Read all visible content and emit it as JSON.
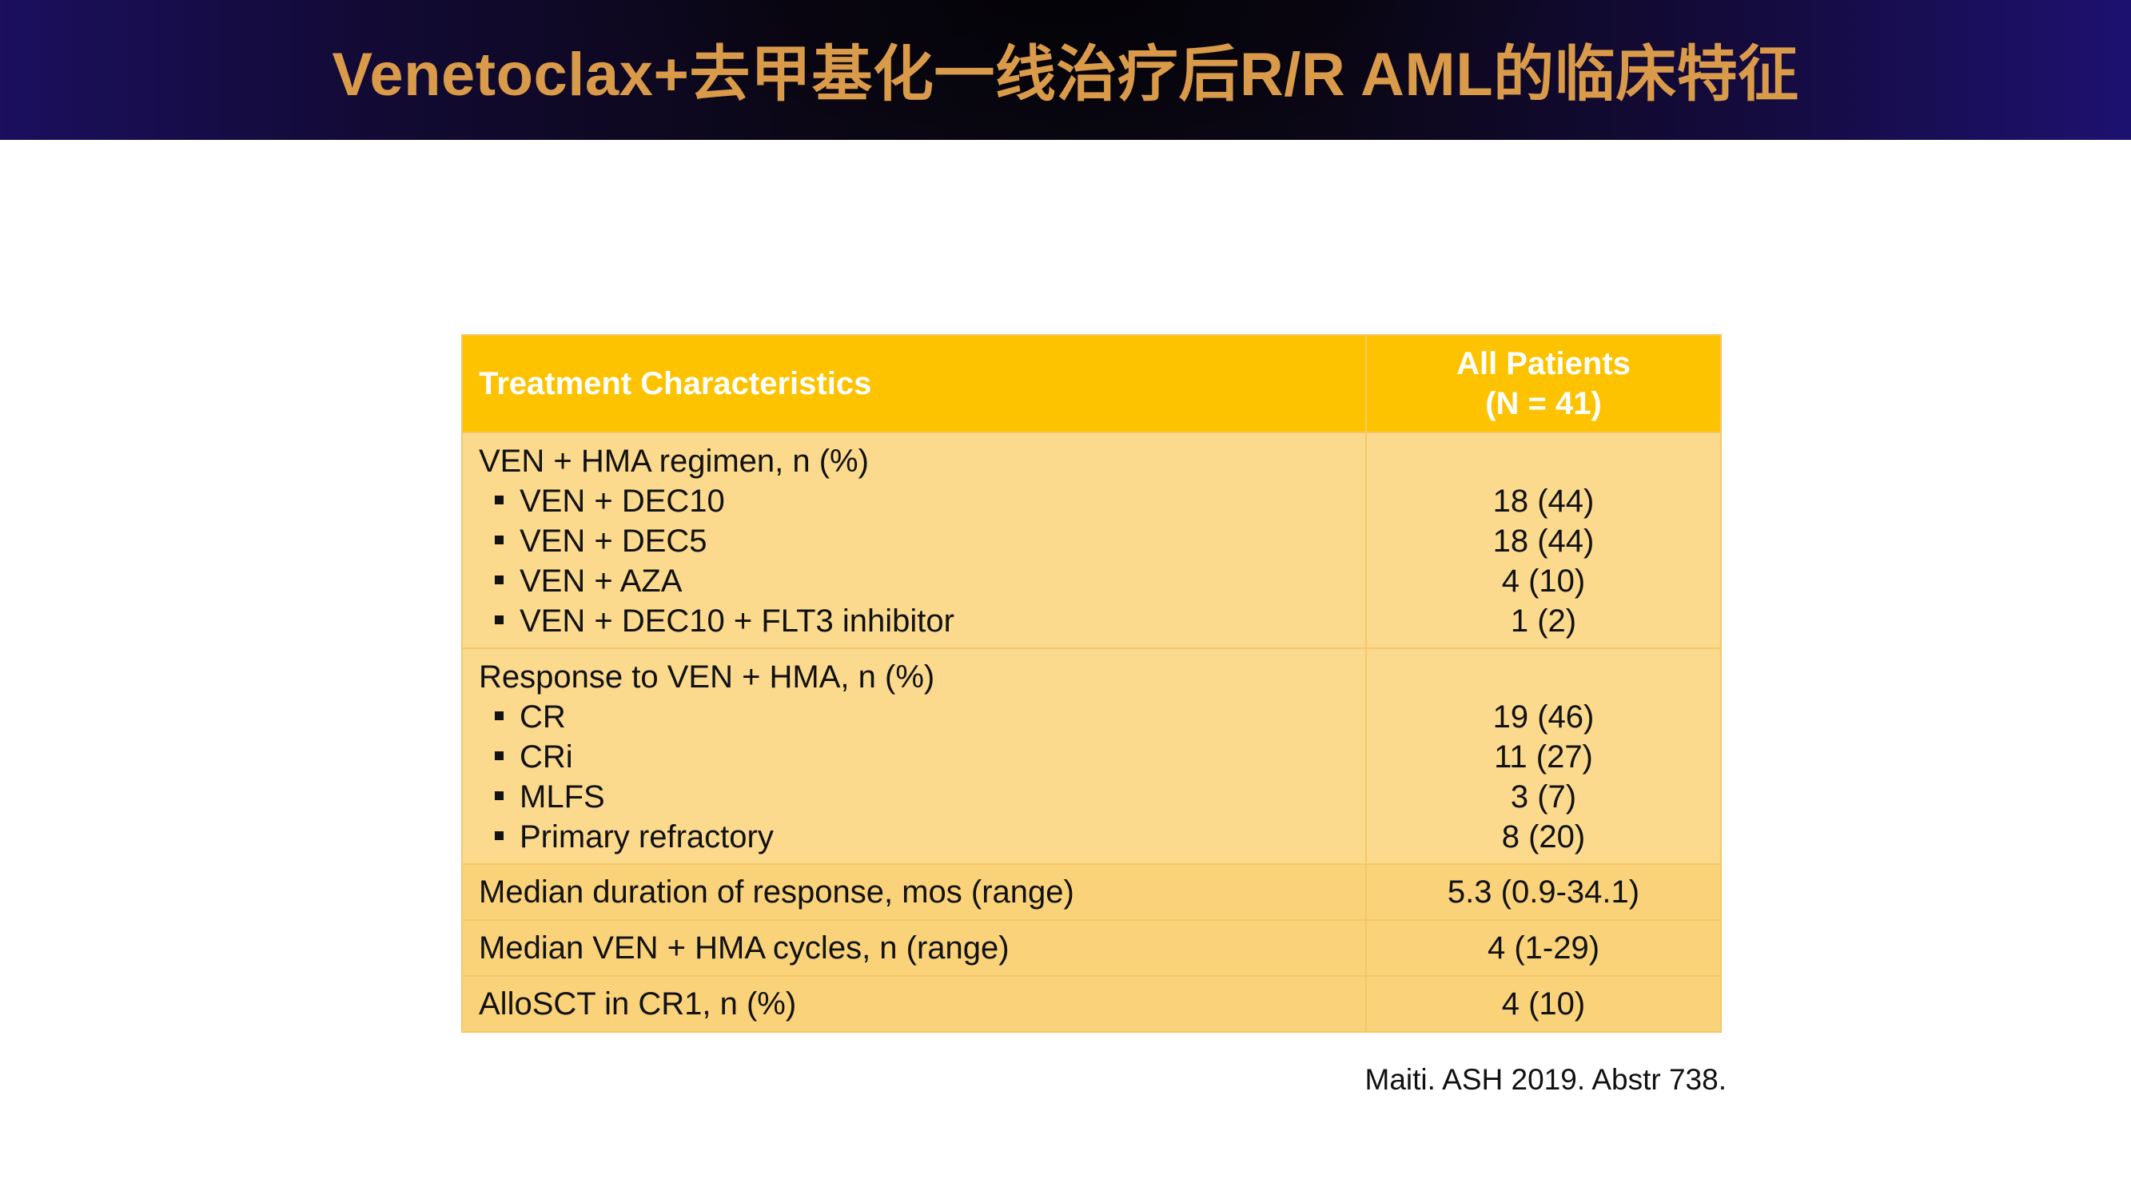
{
  "title": "Venetoclax+去甲基化一线治疗后R/R AML的临床特征",
  "table": {
    "header": {
      "col1": "Treatment Characteristics",
      "col2_line1": "All Patients",
      "col2_line2": "(N = 41)"
    },
    "regimen": {
      "label": "VEN + HMA regimen, n (%)",
      "items": [
        {
          "label": "VEN + DEC10",
          "value": "18 (44)"
        },
        {
          "label": "VEN + DEC5",
          "value": "18 (44)"
        },
        {
          "label": "VEN + AZA",
          "value": "4 (10)"
        },
        {
          "label": "VEN + DEC10 + FLT3 inhibitor",
          "value": "1 (2)"
        }
      ]
    },
    "response": {
      "label": "Response to VEN + HMA, n (%)",
      "items": [
        {
          "label": "CR",
          "value": "19 (46)"
        },
        {
          "label": "CRi",
          "value": "11 (27)"
        },
        {
          "label": "MLFS",
          "value": "3 (7)"
        },
        {
          "label": "Primary refractory",
          "value": "8 (20)"
        }
      ]
    },
    "rows": [
      {
        "label": "Median duration of response, mos (range)",
        "value": "5.3 (0.9-34.1)"
      },
      {
        "label": "Median VEN + HMA cycles, n (range)",
        "value": "4 (1-29)"
      },
      {
        "label": "AlloSCT in CR1, n (%)",
        "value": "4 (10)"
      }
    ]
  },
  "citation": "Maiti. ASH 2019. Abstr 738.",
  "colors": {
    "title_text": "#d99a4a",
    "header_bg": "#fdc300",
    "row_bg": "#fbd98d",
    "row_bg_alt": "#f9d279",
    "border": "#f5c76a"
  }
}
